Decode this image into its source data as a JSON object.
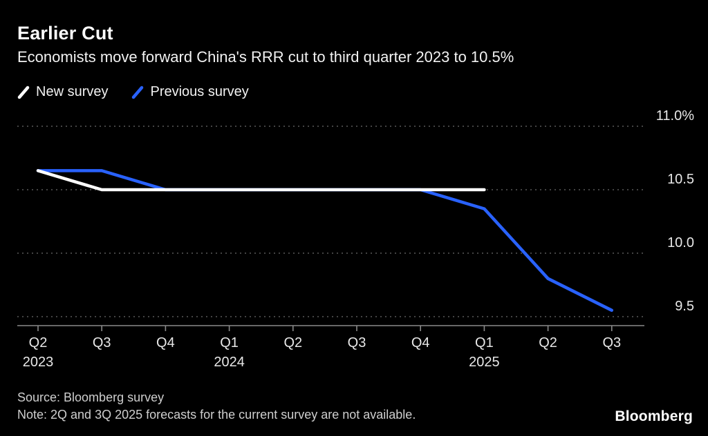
{
  "header": {
    "title": "Earlier Cut",
    "subtitle": "Economists move forward China's RRR cut to third quarter 2023 to 10.5%"
  },
  "legend": [
    {
      "label": "New survey",
      "color": "#ffffff"
    },
    {
      "label": "Previous survey",
      "color": "#2962ff"
    }
  ],
  "footer": {
    "source": "Source: Bloomberg survey",
    "note": "Note: 2Q and 3Q 2025 forecasts for the current survey are not available.",
    "logo": "Bloomberg"
  },
  "chart_data": {
    "type": "line",
    "title": "Earlier Cut",
    "subtitle": "Economists move forward China's RRR cut to third quarter 2023 to 10.5%",
    "x_ticks": [
      {
        "quarter": "Q2",
        "year": "2023"
      },
      {
        "quarter": "Q3"
      },
      {
        "quarter": "Q4"
      },
      {
        "quarter": "Q1",
        "year": "2024"
      },
      {
        "quarter": "Q2"
      },
      {
        "quarter": "Q3"
      },
      {
        "quarter": "Q4"
      },
      {
        "quarter": "Q1",
        "year": "2025"
      },
      {
        "quarter": "Q2"
      },
      {
        "quarter": "Q3"
      }
    ],
    "y_ticks": [
      {
        "value": 11.0,
        "label": "11.0%"
      },
      {
        "value": 10.5,
        "label": "10.5"
      },
      {
        "value": 10.0,
        "label": "10.0"
      },
      {
        "value": 9.5,
        "label": "9.5"
      }
    ],
    "ylim": [
      9.45,
      11.0
    ],
    "grid": "horizontal-dotted",
    "legend_position": "top-left",
    "series": [
      {
        "name": "Previous survey",
        "color": "#2962ff",
        "values": [
          10.65,
          10.65,
          10.5,
          10.5,
          10.5,
          10.5,
          10.5,
          10.35,
          9.8,
          9.55
        ]
      },
      {
        "name": "New survey",
        "color": "#ffffff",
        "values": [
          10.65,
          10.5,
          10.5,
          10.5,
          10.5,
          10.5,
          10.5,
          10.5
        ]
      }
    ]
  }
}
